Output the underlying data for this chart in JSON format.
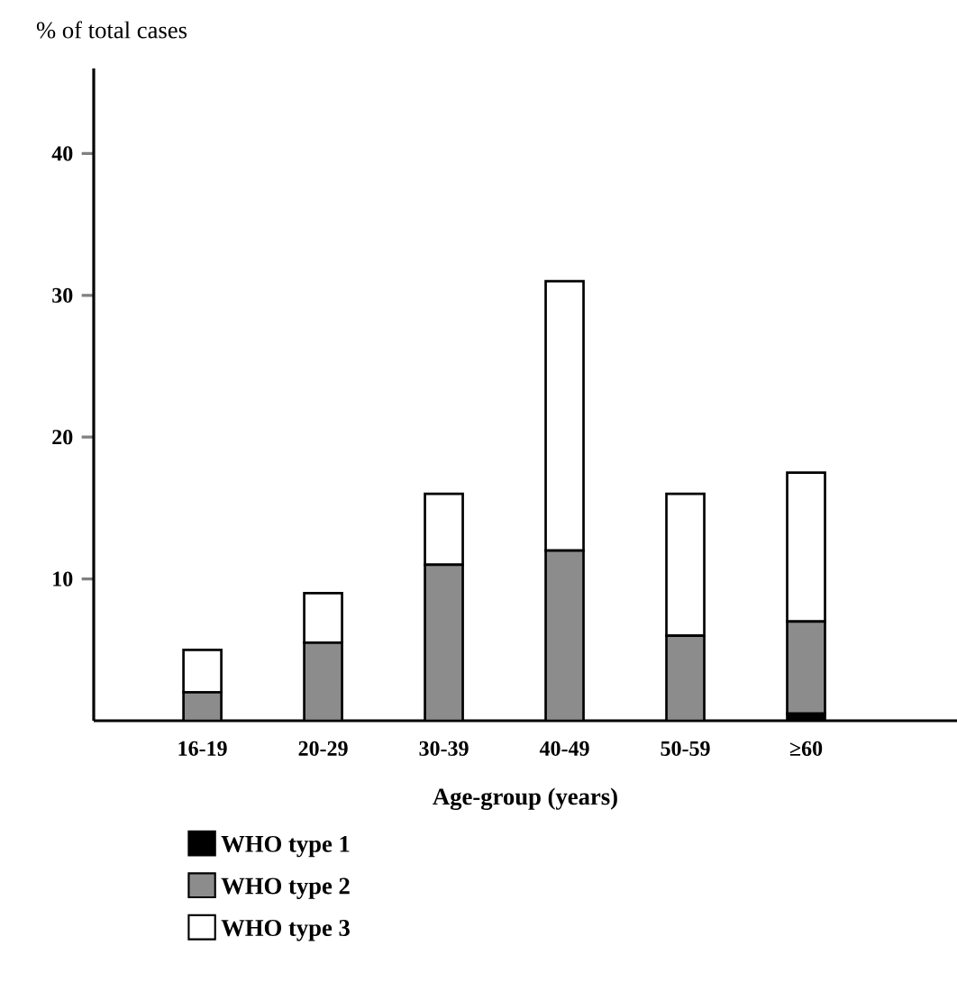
{
  "chart_data": {
    "type": "bar",
    "stacked": true,
    "ylabel": "% of total cases",
    "xlabel": "Age-group (years)",
    "categories": [
      "16-19",
      "20-29",
      "30-39",
      "40-49",
      "50-59",
      "≥60"
    ],
    "series": [
      {
        "name": "WHO type 1",
        "color": "#000000",
        "values": [
          0,
          0,
          0,
          0,
          0,
          0.5
        ]
      },
      {
        "name": "WHO type 2",
        "color": "#8c8c8c",
        "values": [
          2,
          5.5,
          11,
          12,
          6,
          6.5
        ]
      },
      {
        "name": "WHO type 3",
        "color": "#ffffff",
        "values": [
          3,
          3.5,
          5,
          19,
          10,
          10.5
        ]
      }
    ],
    "ylim": [
      0,
      46
    ],
    "yticks": [
      10,
      20,
      30,
      40
    ],
    "grid": false,
    "legend": "bottom left"
  }
}
